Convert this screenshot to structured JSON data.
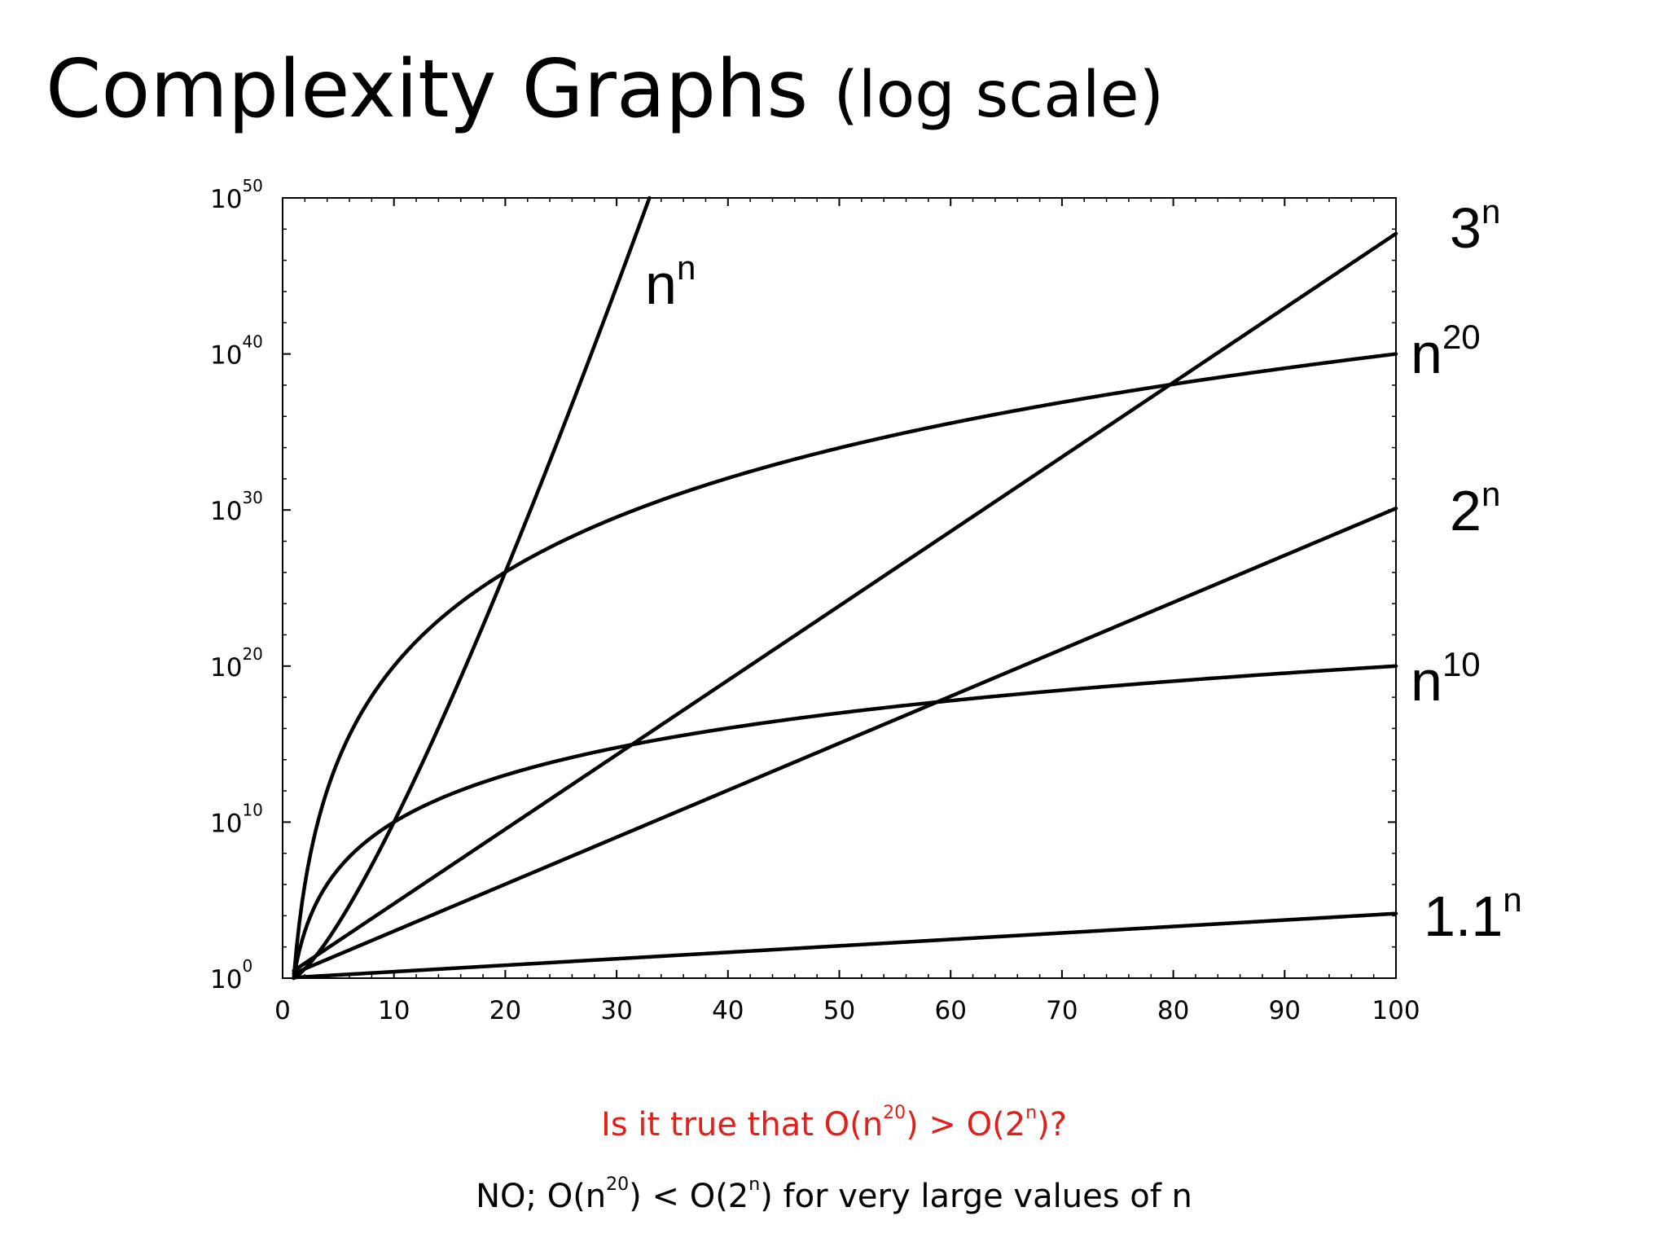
{
  "slide": {
    "title": "Complexity Graphs",
    "title_suffix": "(log scale)"
  },
  "question": {
    "prefix": "Is it true that O(n",
    "exp1": "20",
    "middle": ") > O(2",
    "exp2": "n",
    "suffix": ")?",
    "color": "#e0201b"
  },
  "answer": {
    "prefix": "NO; O(n",
    "exp1": "20",
    "middle": ") < O(2",
    "exp2": "n",
    "suffix": ") for very large values of n"
  },
  "chart_data": {
    "type": "line",
    "title": "",
    "xlabel": "",
    "ylabel": "",
    "xlim": [
      0,
      100
    ],
    "ylim_log10": [
      0,
      50
    ],
    "y_scale": "log",
    "grid": false,
    "x_ticks": [
      "0",
      "10",
      "20",
      "30",
      "40",
      "50",
      "60",
      "70",
      "80",
      "90",
      "100"
    ],
    "y_ticks": [
      {
        "base": "10",
        "exp": "0"
      },
      {
        "base": "10",
        "exp": "10"
      },
      {
        "base": "10",
        "exp": "20"
      },
      {
        "base": "10",
        "exp": "30"
      },
      {
        "base": "10",
        "exp": "40"
      },
      {
        "base": "10",
        "exp": "50"
      }
    ],
    "series": [
      {
        "name": "n^n",
        "label_base": "n",
        "label_exp": "n",
        "formula": "n^n",
        "label_position": "top",
        "values_log10": [
          [
            1,
            0
          ],
          [
            10,
            10
          ],
          [
            20,
            26.02
          ],
          [
            30,
            44.31
          ],
          [
            32.8,
            49.8
          ]
        ]
      },
      {
        "name": "3^n",
        "label_base": "3",
        "label_exp": "n",
        "formula": "3^n",
        "label_position": "right",
        "values_log10": [
          [
            1,
            0.477
          ],
          [
            20,
            9.54
          ],
          [
            40,
            19.08
          ],
          [
            60,
            28.63
          ],
          [
            80,
            38.17
          ],
          [
            100,
            47.71
          ]
        ]
      },
      {
        "name": "n^20",
        "label_base": "n",
        "label_exp": "20",
        "formula": "n^20",
        "label_position": "right",
        "values_log10": [
          [
            1,
            0
          ],
          [
            10,
            20
          ],
          [
            20,
            26.02
          ],
          [
            40,
            32.04
          ],
          [
            60,
            35.56
          ],
          [
            80,
            38.06
          ],
          [
            100,
            40
          ]
        ]
      },
      {
        "name": "2^n",
        "label_base": "2",
        "label_exp": "n",
        "formula": "2^n",
        "label_position": "right",
        "values_log10": [
          [
            1,
            0.301
          ],
          [
            25,
            7.53
          ],
          [
            50,
            15.05
          ],
          [
            75,
            22.58
          ],
          [
            100,
            30.1
          ]
        ]
      },
      {
        "name": "n^10",
        "label_base": "n",
        "label_exp": "10",
        "formula": "n^10",
        "label_position": "right",
        "values_log10": [
          [
            1,
            0
          ],
          [
            10,
            10
          ],
          [
            20,
            13.01
          ],
          [
            40,
            16.02
          ],
          [
            60,
            17.78
          ],
          [
            80,
            19.03
          ],
          [
            100,
            20
          ]
        ]
      },
      {
        "name": "1.1^n",
        "label_base": "1.1",
        "label_exp": "n",
        "formula": "1.1^n",
        "label_position": "right",
        "values_log10": [
          [
            1,
            0.041
          ],
          [
            50,
            2.07
          ],
          [
            100,
            4.14
          ]
        ]
      }
    ]
  }
}
